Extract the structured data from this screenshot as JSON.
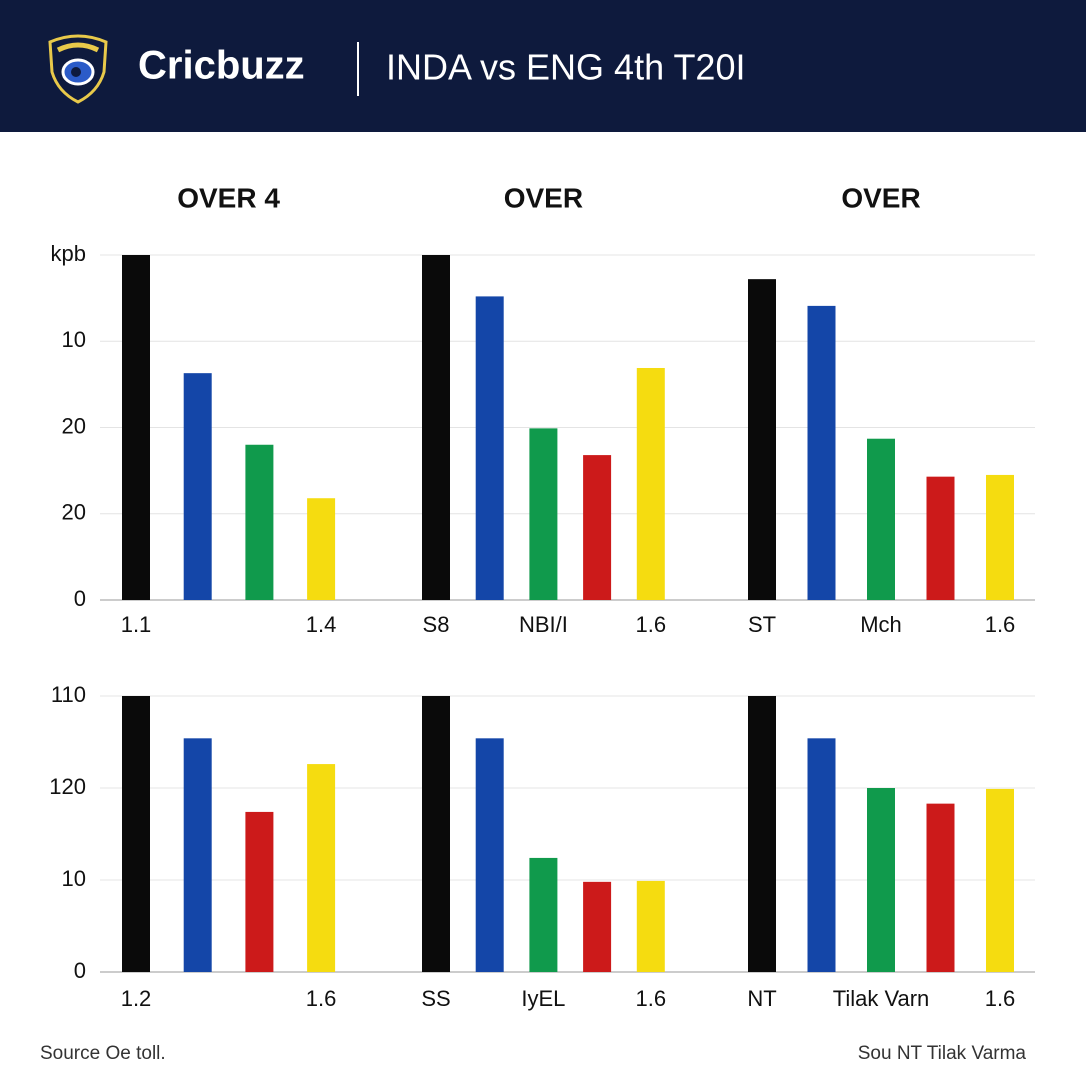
{
  "header": {
    "brand": "Cricbuzz",
    "title": "INDA vs ENG 4th T20I"
  },
  "footer": {
    "left": "Source Oe toll.",
    "right": "Sou NT Tilak Varma"
  },
  "chart_data": [
    {
      "type": "bar",
      "ylim": [
        0,
        40
      ],
      "yticks": [
        0,
        {
          "value": 10,
          "label": "20"
        },
        20,
        {
          "value": 30,
          "label": "10"
        },
        {
          "value": 40,
          "label": "kpb"
        }
      ],
      "grid": true,
      "panels": [
        {
          "title": "OVER 4",
          "categories": [
            "1.1",
            null,
            null,
            "1.4"
          ],
          "values": [
            40,
            26.3,
            18,
            11.8
          ],
          "colors": [
            "#0a0a0a",
            "#1446a8",
            "#109a4c",
            "#f5dc10"
          ]
        },
        {
          "title": "OVER",
          "categories": [
            "S8",
            null,
            "NBI/I",
            null,
            "1.6"
          ],
          "values": [
            40,
            35.2,
            19.9,
            16.8,
            26.9
          ],
          "colors": [
            "#0a0a0a",
            "#1446a8",
            "#109a4c",
            "#cc1a1a",
            "#f5dc10"
          ]
        },
        {
          "title": "OVER",
          "categories": [
            "ST",
            null,
            "Mch",
            null,
            "1.6"
          ],
          "values": [
            37.2,
            34.1,
            18.7,
            14.3,
            14.5
          ],
          "colors": [
            "#0a0a0a",
            "#1446a8",
            "#109a4c",
            "#cc1a1a",
            "#f5dc10"
          ]
        }
      ]
    },
    {
      "type": "bar",
      "ylim": [
        0,
        30
      ],
      "yticks": [
        0,
        10,
        {
          "value": 20,
          "label": "120"
        },
        {
          "value": 30,
          "label": "110"
        }
      ],
      "grid": true,
      "panels": [
        {
          "categories": [
            "1.2",
            null,
            null,
            "1.6"
          ],
          "values": [
            30,
            25.4,
            17.4,
            22.6
          ],
          "colors": [
            "#0a0a0a",
            "#1446a8",
            "#cc1a1a",
            "#f5dc10"
          ]
        },
        {
          "categories": [
            "SS",
            null,
            "IyEL",
            null,
            "1.6"
          ],
          "values": [
            30,
            25.4,
            12.4,
            9.8,
            9.9
          ],
          "colors": [
            "#0a0a0a",
            "#1446a8",
            "#109a4c",
            "#cc1a1a",
            "#f5dc10"
          ]
        },
        {
          "categories": [
            "NT",
            null,
            "Tilak Varn",
            null,
            "1.6"
          ],
          "values": [
            30,
            25.4,
            20,
            18.3,
            19.9
          ],
          "colors": [
            "#0a0a0a",
            "#1446a8",
            "#109a4c",
            "#cc1a1a",
            "#f5dc10"
          ]
        }
      ]
    }
  ]
}
